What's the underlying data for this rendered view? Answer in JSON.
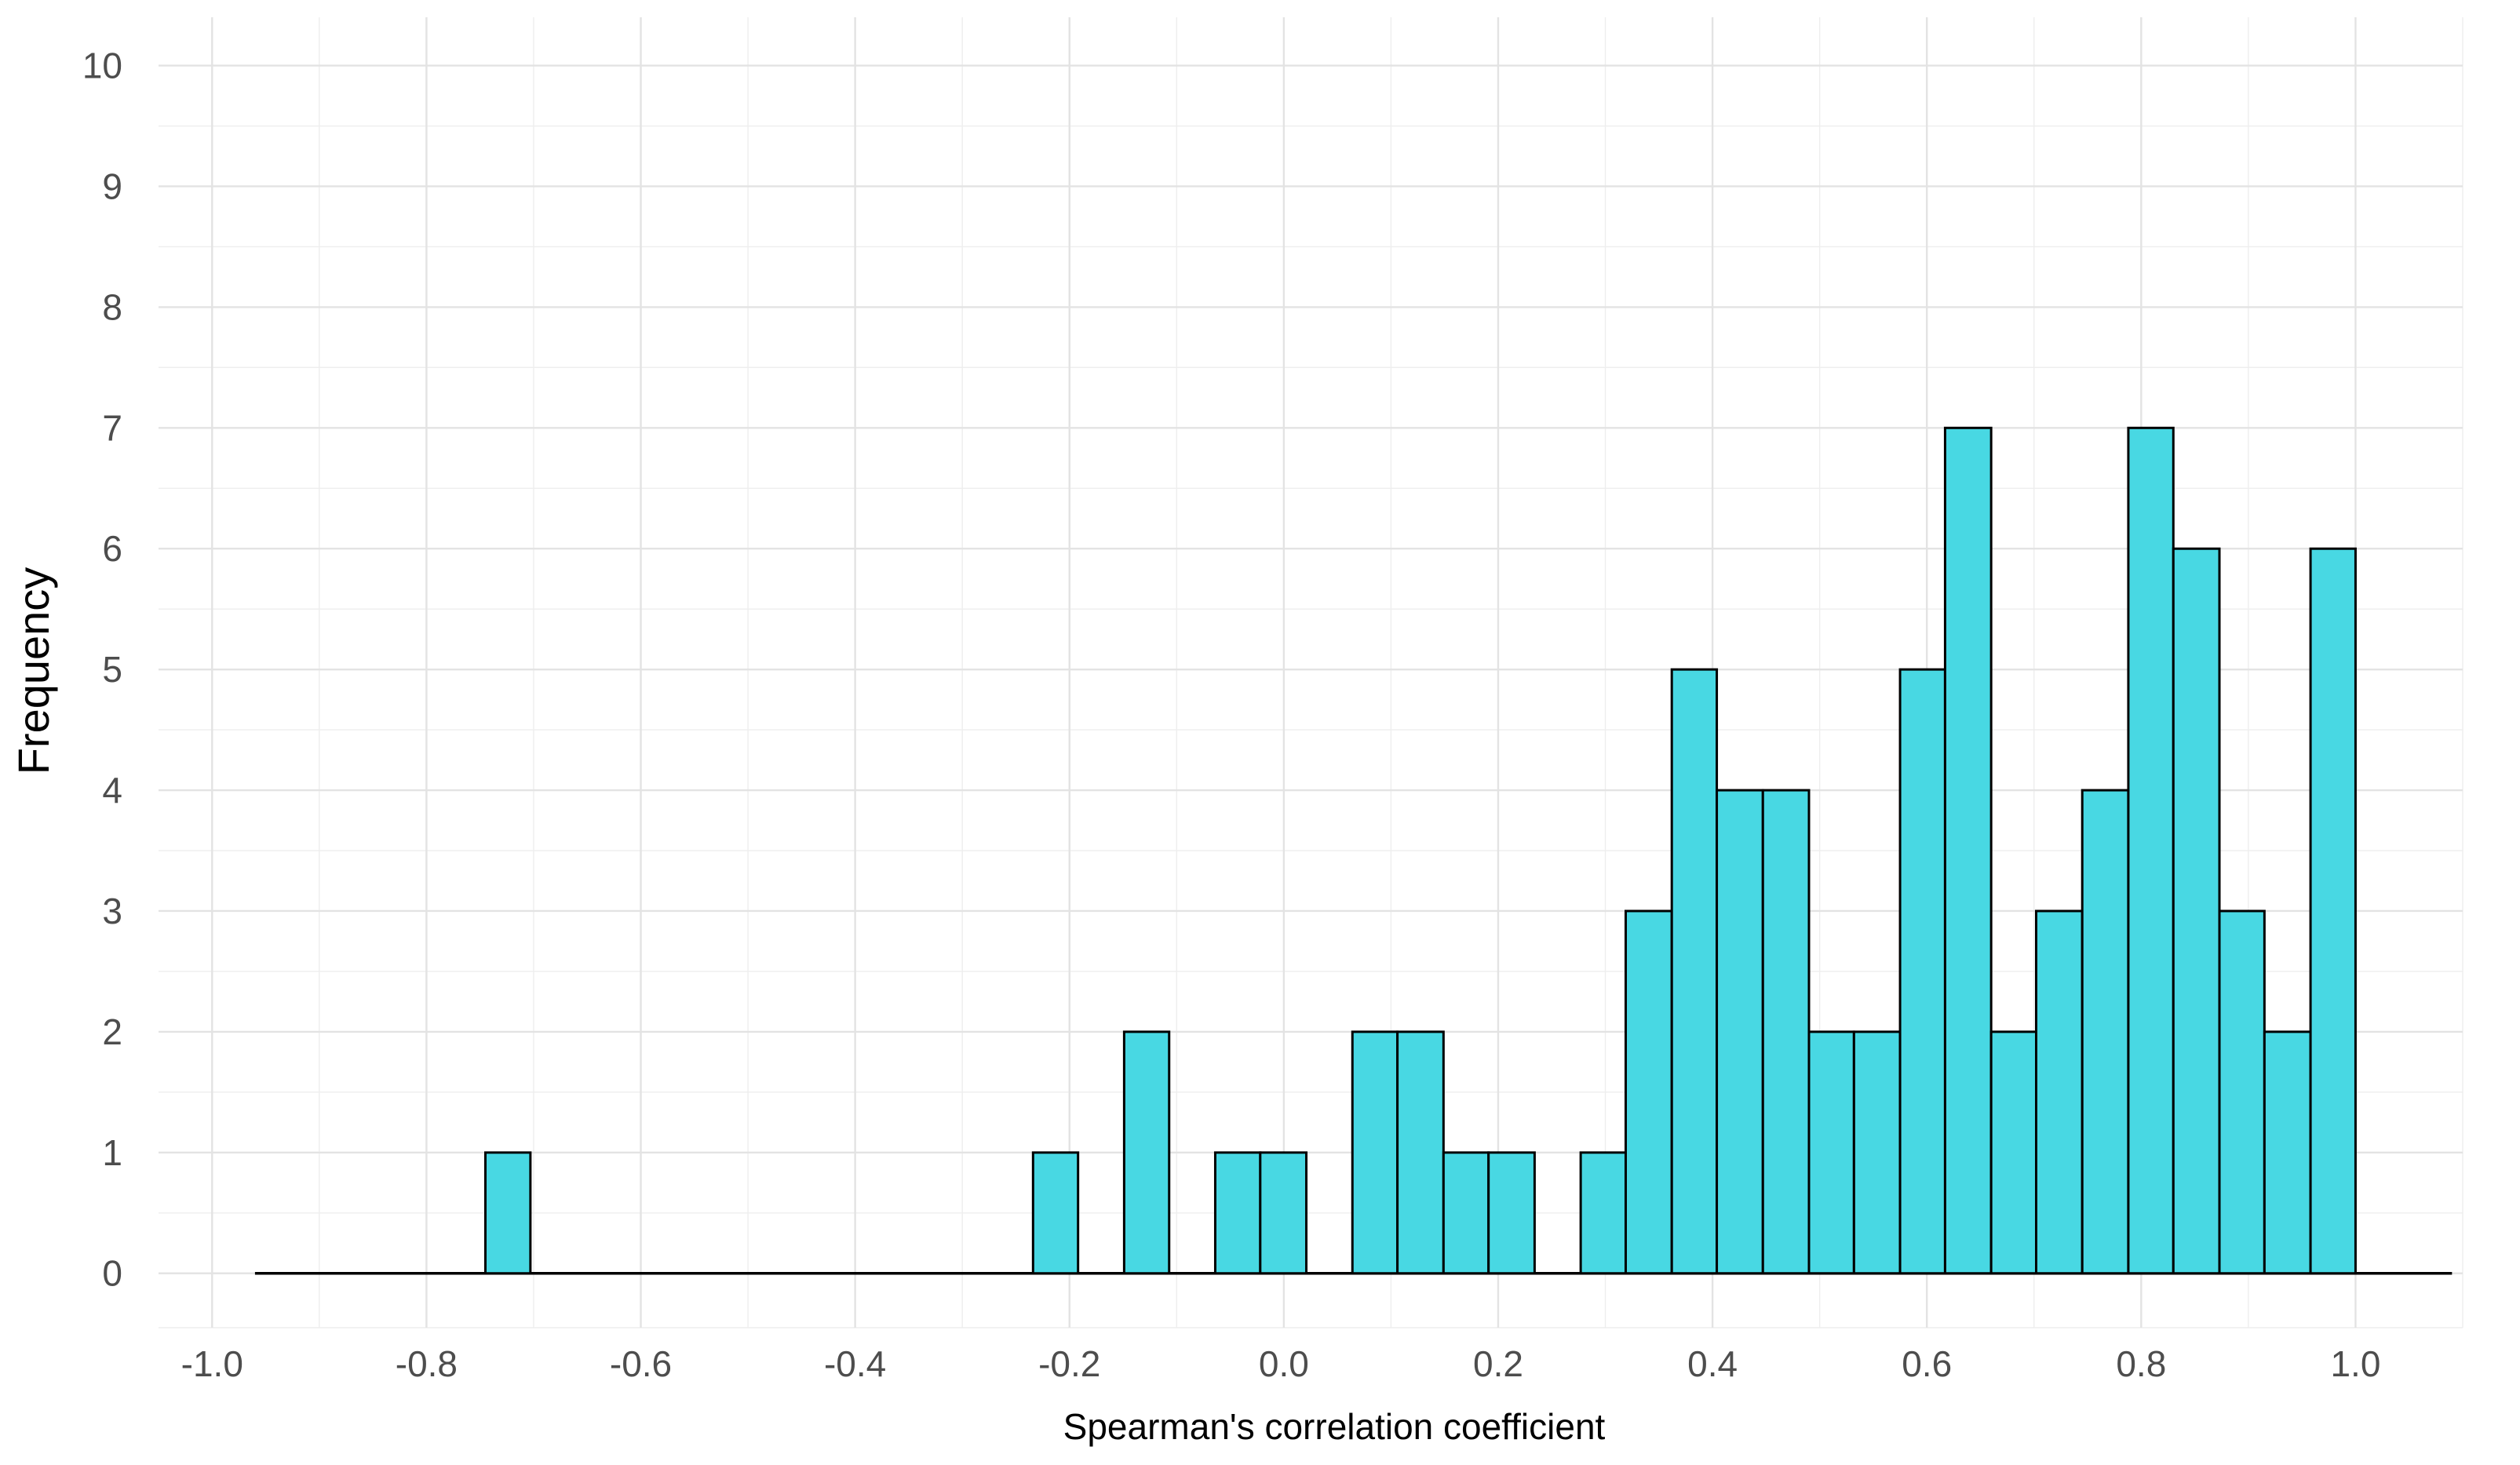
{
  "chart_data": {
    "type": "bar",
    "subtype": "histogram",
    "title": "",
    "xlabel": "Spearman's correlation coefficient",
    "ylabel": "Frequency",
    "xlim": [
      -1.05,
      1.1
    ],
    "ylim": [
      -0.45,
      10.4
    ],
    "x_range_drawn": [
      -0.96,
      1.09
    ],
    "bin_width": 0.0426,
    "x_ticks": [
      -1.0,
      -0.8,
      -0.6,
      -0.4,
      -0.2,
      0.0,
      0.2,
      0.4,
      0.6,
      0.8,
      1.0
    ],
    "x_tick_labels": [
      "-1.0",
      "-0.8",
      "-0.6",
      "-0.4",
      "-0.2",
      "0.0",
      "0.2",
      "0.4",
      "0.6",
      "0.8",
      "1.0"
    ],
    "y_ticks": [
      0,
      1,
      2,
      3,
      4,
      5,
      6,
      7,
      8,
      9,
      10
    ],
    "y_tick_labels": [
      "0",
      "1",
      "2",
      "3",
      "4",
      "5",
      "6",
      "7",
      "8",
      "9",
      "10"
    ],
    "grid": true,
    "legend": "none",
    "bar_color": "#48D8E3",
    "bar_edge_color": "#000000",
    "bins": [
      {
        "x_start": -0.745,
        "x_end": -0.703,
        "count": 1
      },
      {
        "x_start": -0.234,
        "x_end": -0.192,
        "count": 1
      },
      {
        "x_start": -0.149,
        "x_end": -0.107,
        "count": 2
      },
      {
        "x_start": -0.064,
        "x_end": -0.022,
        "count": 1
      },
      {
        "x_start": -0.022,
        "x_end": 0.021,
        "count": 1
      },
      {
        "x_start": 0.064,
        "x_end": 0.106,
        "count": 2
      },
      {
        "x_start": 0.106,
        "x_end": 0.149,
        "count": 2
      },
      {
        "x_start": 0.149,
        "x_end": 0.191,
        "count": 1
      },
      {
        "x_start": 0.191,
        "x_end": 0.234,
        "count": 1
      },
      {
        "x_start": 0.277,
        "x_end": 0.319,
        "count": 1
      },
      {
        "x_start": 0.319,
        "x_end": 0.362,
        "count": 3
      },
      {
        "x_start": 0.362,
        "x_end": 0.404,
        "count": 5
      },
      {
        "x_start": 0.404,
        "x_end": 0.447,
        "count": 4
      },
      {
        "x_start": 0.447,
        "x_end": 0.49,
        "count": 4
      },
      {
        "x_start": 0.49,
        "x_end": 0.532,
        "count": 2
      },
      {
        "x_start": 0.532,
        "x_end": 0.575,
        "count": 2
      },
      {
        "x_start": 0.575,
        "x_end": 0.617,
        "count": 5
      },
      {
        "x_start": 0.617,
        "x_end": 0.66,
        "count": 7
      },
      {
        "x_start": 0.66,
        "x_end": 0.702,
        "count": 2
      },
      {
        "x_start": 0.702,
        "x_end": 0.745,
        "count": 3
      },
      {
        "x_start": 0.745,
        "x_end": 0.788,
        "count": 4
      },
      {
        "x_start": 0.788,
        "x_end": 0.83,
        "count": 7
      },
      {
        "x_start": 0.83,
        "x_end": 0.873,
        "count": 6
      },
      {
        "x_start": 0.873,
        "x_end": 0.915,
        "count": 3
      },
      {
        "x_start": 0.915,
        "x_end": 0.958,
        "count": 2
      },
      {
        "x_start": 0.958,
        "x_end": 1.0,
        "count": 6
      }
    ]
  }
}
